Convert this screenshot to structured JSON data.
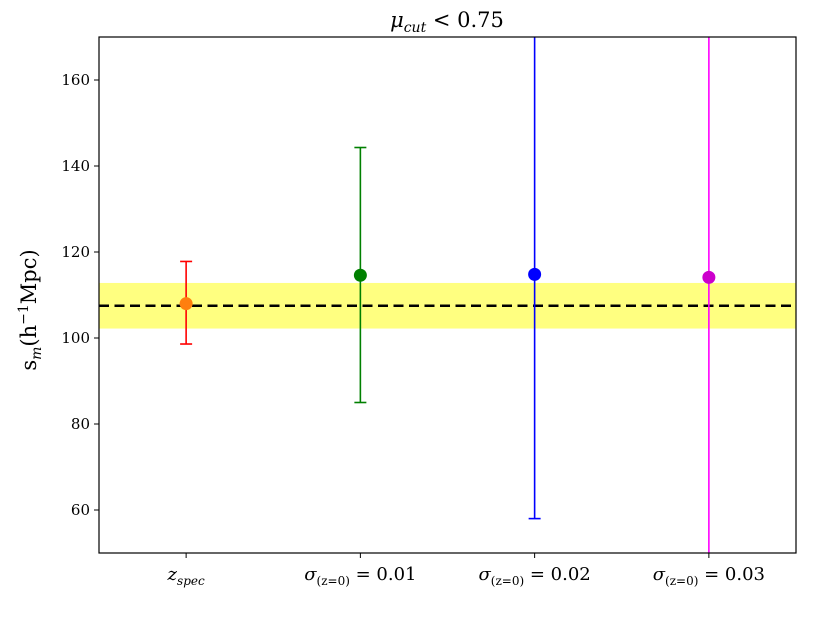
{
  "chart_data": {
    "type": "errorbar",
    "title_parts": {
      "main": "μ",
      "sub": "cut",
      "rest": " < 0.75"
    },
    "ylabel_parts": {
      "pre": "s",
      "sub": "m",
      "mid": "(h",
      "sup": "−1",
      "post": "Mpc)"
    },
    "ylim": [
      50,
      170
    ],
    "yticks": [
      60,
      80,
      100,
      120,
      140,
      160
    ],
    "grid": false,
    "reference": {
      "value": 107.5,
      "band": [
        102.2,
        112.8
      ],
      "line_color": "#000000",
      "band_color": "#ffff80"
    },
    "categories": [
      {
        "sym": "z",
        "sub": "spec",
        "rhs": ""
      },
      {
        "sym": "σ",
        "sub": "(z=0)",
        "rhs": " = 0.01"
      },
      {
        "sym": "σ",
        "sub": "(z=0)",
        "rhs": " = 0.02"
      },
      {
        "sym": "σ",
        "sub": "(z=0)",
        "rhs": " = 0.03"
      }
    ],
    "points": [
      {
        "value": 108.0,
        "lower": 98.6,
        "upper": 117.8,
        "color": "#ff0000",
        "marker_color": "#ff7f0e",
        "capped_top": true,
        "capped_bottom": true
      },
      {
        "value": 114.6,
        "lower": 85.0,
        "upper": 144.3,
        "color": "#008000",
        "marker_color": "#008000",
        "capped_top": true,
        "capped_bottom": true
      },
      {
        "value": 114.8,
        "lower": 58.0,
        "upper": 170,
        "color": "#0000ff",
        "marker_color": "#0000ff",
        "capped_top": false,
        "capped_bottom": true
      },
      {
        "value": 114.1,
        "lower": 50,
        "upper": 170,
        "color": "#ff00ff",
        "marker_color": "#cc00cc",
        "capped_top": false,
        "capped_bottom": false
      }
    ]
  }
}
